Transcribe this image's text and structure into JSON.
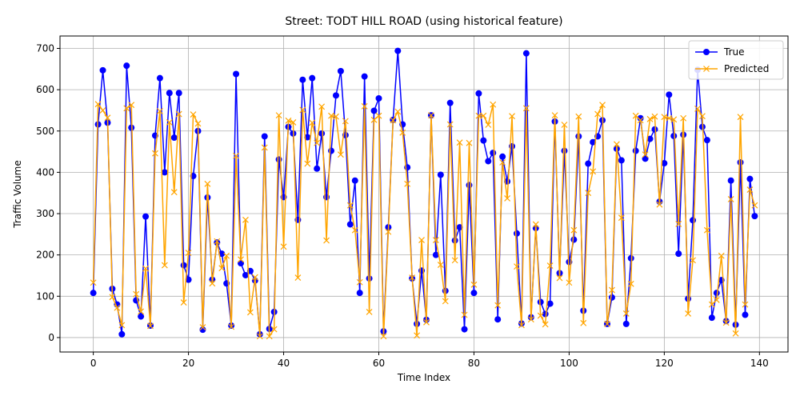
{
  "chart_data": {
    "type": "line",
    "title": "Street: TODT HILL ROAD (using historical feature)",
    "xlabel": "Time Index",
    "ylabel": "Traffic Volume",
    "xlim": [
      -7,
      146
    ],
    "ylim": [
      -35,
      730
    ],
    "x_ticks": [
      0,
      20,
      40,
      60,
      80,
      100,
      120,
      140
    ],
    "y_ticks": [
      0,
      100,
      200,
      300,
      400,
      500,
      600,
      700
    ],
    "grid": true,
    "legend_position": "top-right",
    "series": [
      {
        "name": "True",
        "color": "#0000ff",
        "marker": "circle",
        "values": [
          108,
          516,
          647,
          520,
          118,
          80,
          8,
          658,
          508,
          90,
          51,
          293,
          29,
          489,
          628,
          400,
          592,
          484,
          592,
          175,
          140,
          391,
          500,
          19,
          339,
          140,
          230,
          203,
          131,
          29,
          638,
          180,
          151,
          161,
          138,
          8,
          487,
          21,
          62,
          431,
          340,
          510,
          494,
          285,
          624,
          485,
          628,
          409,
          494,
          340,
          452,
          586,
          645,
          490,
          274,
          380,
          108,
          632,
          143,
          549,
          579,
          15,
          267,
          527,
          694,
          516,
          412,
          143,
          33,
          162,
          43,
          538,
          200,
          394,
          113,
          568,
          235,
          267,
          20,
          369,
          108,
          591,
          477,
          427,
          447,
          44,
          438,
          378,
          463,
          252,
          34,
          688,
          49,
          265,
          86,
          57,
          82,
          523,
          156,
          452,
          183,
          237,
          487,
          65,
          421,
          473,
          487,
          526,
          33,
          97,
          457,
          429,
          33,
          192,
          452,
          531,
          433,
          481,
          504,
          329,
          422,
          588,
          488,
          203,
          491,
          94,
          284,
          648,
          510,
          478,
          48,
          108,
          139,
          40,
          380,
          31,
          424,
          55,
          384,
          294
        ]
      },
      {
        "name": "Predicted",
        "color": "#ffa500",
        "marker": "x",
        "values": [
          133,
          565,
          550,
          532,
          98,
          72,
          30,
          555,
          563,
          105,
          63,
          167,
          28,
          446,
          548,
          175,
          521,
          352,
          541,
          85,
          205,
          540,
          518,
          25,
          372,
          131,
          233,
          168,
          198,
          26,
          440,
          189,
          285,
          61,
          146,
          3,
          460,
          3,
          20,
          538,
          220,
          525,
          521,
          145,
          551,
          421,
          520,
          471,
          559,
          235,
          537,
          535,
          443,
          524,
          320,
          260,
          134,
          560,
          62,
          527,
          537,
          3,
          256,
          526,
          547,
          496,
          372,
          145,
          5,
          236,
          37,
          538,
          236,
          176,
          88,
          516,
          187,
          472,
          55,
          471,
          128,
          537,
          537,
          515,
          564,
          78,
          424,
          337,
          536,
          172,
          30,
          555,
          44,
          274,
          53,
          32,
          174,
          538,
          144,
          515,
          133,
          260,
          535,
          35,
          350,
          402,
          541,
          563,
          33,
          115,
          468,
          290,
          58,
          130,
          537,
          526,
          443,
          529,
          535,
          322,
          534,
          531,
          528,
          275,
          531,
          58,
          187,
          554,
          536,
          260,
          80,
          91,
          198,
          36,
          335,
          10,
          534,
          80,
          358,
          320
        ]
      }
    ]
  }
}
